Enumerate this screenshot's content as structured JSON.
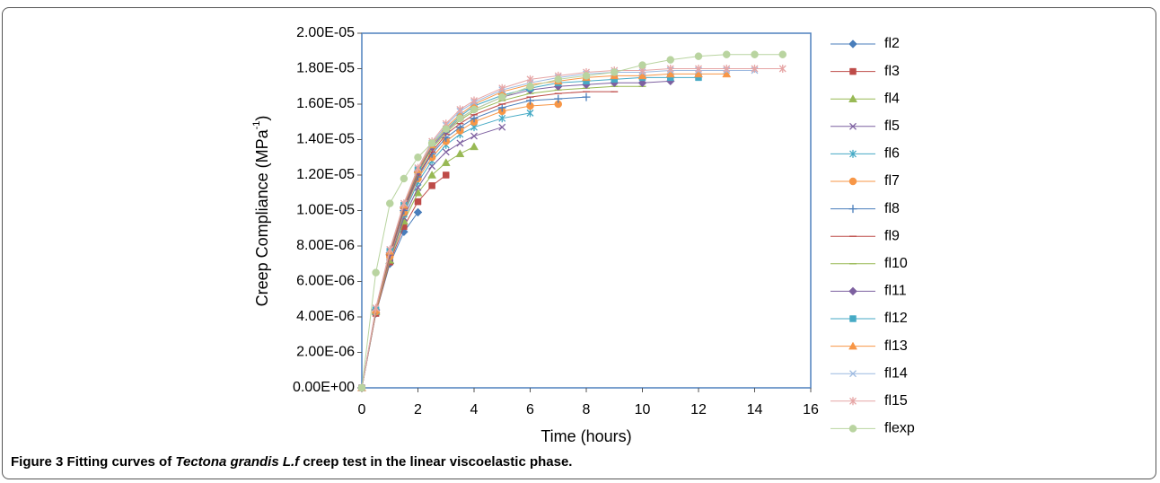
{
  "chart_data": {
    "type": "line",
    "ylabel": "Creep Compliance  (MPa",
    "ylabel_sup": "-1",
    "ylabel_end": ")",
    "xlabel": "Time (hours)",
    "x": [
      0,
      0.5,
      1,
      1.5,
      2,
      2.5,
      3,
      3.5,
      4,
      5,
      6,
      7,
      8,
      9,
      10,
      11,
      12,
      13,
      14,
      15
    ],
    "xlim": [
      0,
      16
    ],
    "xticks": [
      0,
      2,
      4,
      6,
      8,
      10,
      12,
      14,
      16
    ],
    "ylim": [
      0,
      2e-05
    ],
    "yticks": [
      {
        "value": 0,
        "label": "0.00E+00"
      },
      {
        "value": 2e-06,
        "label": "2.00E-06"
      },
      {
        "value": 4e-06,
        "label": "4.00E-06"
      },
      {
        "value": 6e-06,
        "label": "6.00E-06"
      },
      {
        "value": 8e-06,
        "label": "8.00E-06"
      },
      {
        "value": 1e-05,
        "label": "1.00E-05"
      },
      {
        "value": 1.2e-05,
        "label": "1.20E-05"
      },
      {
        "value": 1.4e-05,
        "label": "1.40E-05"
      },
      {
        "value": 1.6e-05,
        "label": "1.60E-05"
      },
      {
        "value": 1.8e-05,
        "label": "1.80E-05"
      },
      {
        "value": 2e-05,
        "label": "2.00E-05"
      }
    ],
    "legend": "right",
    "series": [
      {
        "name": "fl2",
        "color": "#4a7ebb",
        "marker": "diamond",
        "values": [
          0,
          4.2e-06,
          7e-06,
          8.8e-06,
          9.9e-06,
          null,
          null,
          null,
          null,
          null,
          null,
          null,
          null,
          null,
          null,
          null,
          null,
          null,
          null,
          null
        ]
      },
      {
        "name": "fl3",
        "color": "#be4b48",
        "marker": "square",
        "values": [
          0,
          4.2e-06,
          7.1e-06,
          9.1e-06,
          1.05e-05,
          1.14e-05,
          1.2e-05,
          null,
          null,
          null,
          null,
          null,
          null,
          null,
          null,
          null,
          null,
          null,
          null,
          null
        ]
      },
      {
        "name": "fl4",
        "color": "#98b954",
        "marker": "triangle",
        "values": [
          0,
          4.3e-06,
          7.2e-06,
          9.4e-06,
          1.1e-05,
          1.2e-05,
          1.27e-05,
          1.32e-05,
          1.36e-05,
          null,
          null,
          null,
          null,
          null,
          null,
          null,
          null,
          null,
          null,
          null
        ]
      },
      {
        "name": "fl5",
        "color": "#7d60a0",
        "marker": "x",
        "values": [
          0,
          4.3e-06,
          7.3e-06,
          9.6e-06,
          1.13e-05,
          1.25e-05,
          1.33e-05,
          1.38e-05,
          1.42e-05,
          1.47e-05,
          null,
          null,
          null,
          null,
          null,
          null,
          null,
          null,
          null,
          null
        ]
      },
      {
        "name": "fl6",
        "color": "#46aac5",
        "marker": "asterisk",
        "values": [
          0,
          4.3e-06,
          7.4e-06,
          9.8e-06,
          1.16e-05,
          1.28e-05,
          1.37e-05,
          1.43e-05,
          1.47e-05,
          1.52e-05,
          1.55e-05,
          null,
          null,
          null,
          null,
          null,
          null,
          null,
          null,
          null
        ]
      },
      {
        "name": "fl7",
        "color": "#f79646",
        "marker": "circle",
        "values": [
          0,
          4.3e-06,
          7.4e-06,
          9.9e-06,
          1.18e-05,
          1.3e-05,
          1.39e-05,
          1.45e-05,
          1.5e-05,
          1.56e-05,
          1.59e-05,
          1.6e-05,
          null,
          null,
          null,
          null,
          null,
          null,
          null,
          null
        ]
      },
      {
        "name": "fl8",
        "color": "#4a7ebb",
        "marker": "plus",
        "values": [
          0,
          4.4e-06,
          7.5e-06,
          1e-05,
          1.19e-05,
          1.32e-05,
          1.41e-05,
          1.47e-05,
          1.52e-05,
          1.58e-05,
          1.62e-05,
          1.63e-05,
          1.64e-05,
          null,
          null,
          null,
          null,
          null,
          null,
          null
        ]
      },
      {
        "name": "fl9",
        "color": "#be4b48",
        "marker": "dash",
        "values": [
          0,
          4.4e-06,
          7.5e-06,
          1.01e-05,
          1.2e-05,
          1.33e-05,
          1.43e-05,
          1.49e-05,
          1.54e-05,
          1.6e-05,
          1.64e-05,
          1.66e-05,
          1.67e-05,
          1.67e-05,
          null,
          null,
          null,
          null,
          null,
          null
        ]
      },
      {
        "name": "fl10",
        "color": "#98b954",
        "marker": "dash",
        "values": [
          0,
          4.4e-06,
          7.6e-06,
          1.02e-05,
          1.21e-05,
          1.35e-05,
          1.44e-05,
          1.51e-05,
          1.56e-05,
          1.62e-05,
          1.66e-05,
          1.68e-05,
          1.69e-05,
          1.7e-05,
          1.7e-05,
          null,
          null,
          null,
          null,
          null
        ]
      },
      {
        "name": "fl11",
        "color": "#7d60a0",
        "marker": "diamond",
        "values": [
          0,
          4.4e-06,
          7.6e-06,
          1.02e-05,
          1.22e-05,
          1.36e-05,
          1.45e-05,
          1.52e-05,
          1.57e-05,
          1.64e-05,
          1.68e-05,
          1.7e-05,
          1.71e-05,
          1.72e-05,
          1.72e-05,
          1.73e-05,
          null,
          null,
          null,
          null
        ]
      },
      {
        "name": "fl12",
        "color": "#46aac5",
        "marker": "square",
        "values": [
          0,
          4.4e-06,
          7.7e-06,
          1.03e-05,
          1.23e-05,
          1.37e-05,
          1.46e-05,
          1.53e-05,
          1.59e-05,
          1.65e-05,
          1.69e-05,
          1.72e-05,
          1.73e-05,
          1.74e-05,
          1.75e-05,
          1.75e-05,
          1.75e-05,
          null,
          null,
          null
        ]
      },
      {
        "name": "fl13",
        "color": "#f79646",
        "marker": "triangle",
        "values": [
          0,
          4.4e-06,
          7.7e-06,
          1.03e-05,
          1.23e-05,
          1.37e-05,
          1.47e-05,
          1.54e-05,
          1.6e-05,
          1.67e-05,
          1.71e-05,
          1.73e-05,
          1.75e-05,
          1.76e-05,
          1.76e-05,
          1.77e-05,
          1.77e-05,
          1.77e-05,
          null,
          null
        ]
      },
      {
        "name": "fl14",
        "color": "#9cb9e0",
        "marker": "x",
        "values": [
          0,
          4.5e-06,
          7.8e-06,
          1.04e-05,
          1.24e-05,
          1.38e-05,
          1.48e-05,
          1.56e-05,
          1.61e-05,
          1.68e-05,
          1.72e-05,
          1.75e-05,
          1.77e-05,
          1.78e-05,
          1.78e-05,
          1.79e-05,
          1.79e-05,
          1.79e-05,
          1.79e-05,
          null
        ]
      },
      {
        "name": "fl15",
        "color": "#e6a5a5",
        "marker": "asterisk",
        "values": [
          0,
          4.5e-06,
          7.8e-06,
          1.04e-05,
          1.24e-05,
          1.39e-05,
          1.49e-05,
          1.57e-05,
          1.62e-05,
          1.69e-05,
          1.74e-05,
          1.76e-05,
          1.78e-05,
          1.79e-05,
          1.79e-05,
          1.8e-05,
          1.8e-05,
          1.8e-05,
          1.8e-05,
          1.8e-05
        ]
      },
      {
        "name": "flexp",
        "color": "#b9d4a0",
        "marker": "circle",
        "values": [
          0,
          6.5e-06,
          1.04e-05,
          1.18e-05,
          1.3e-05,
          1.38e-05,
          1.46e-05,
          1.52e-05,
          1.57e-05,
          1.64e-05,
          1.7e-05,
          1.74e-05,
          1.76e-05,
          1.78e-05,
          1.82e-05,
          1.85e-05,
          1.87e-05,
          1.88e-05,
          1.88e-05,
          1.88e-05
        ]
      }
    ]
  },
  "caption": {
    "label": "Figure 3",
    "text": " Fitting curves of ",
    "italic": "Tectona grandis L.f",
    "rest": " creep test in the linear viscoelastic phase."
  }
}
